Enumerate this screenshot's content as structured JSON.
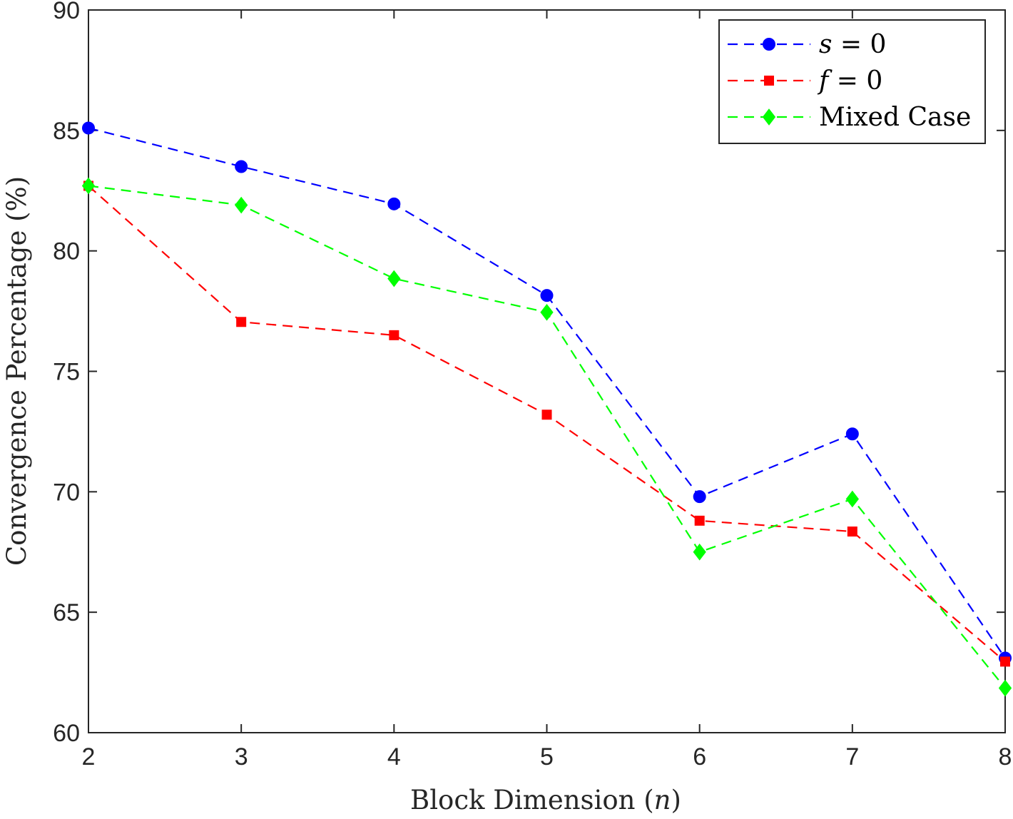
{
  "chart_data": {
    "type": "line",
    "title": "",
    "xlabel": "Block Dimension (n)",
    "xlabel_parts": {
      "prefix": "Block Dimension (",
      "var": "n",
      "suffix": ")"
    },
    "ylabel": "Convergence Percentage (%)",
    "x": [
      2,
      3,
      4,
      5,
      6,
      7,
      8
    ],
    "xlim": [
      2,
      8
    ],
    "ylim": [
      60,
      90
    ],
    "xticks": [
      "2",
      "3",
      "4",
      "5",
      "6",
      "7",
      "8"
    ],
    "yticks": [
      "60",
      "65",
      "70",
      "75",
      "80",
      "85",
      "90"
    ],
    "grid": false,
    "legend_position": "top-right",
    "series": [
      {
        "name": "s = 0",
        "legend_var": "s",
        "legend_rest": " = 0",
        "color": "#0000ff",
        "marker": "circle",
        "line": "dashed",
        "values": [
          85.1,
          83.5,
          81.95,
          78.15,
          69.8,
          72.4,
          63.1
        ]
      },
      {
        "name": "f = 0",
        "legend_var": "f",
        "legend_rest": " = 0",
        "color": "#ff0000",
        "marker": "square",
        "line": "dashed",
        "values": [
          82.7,
          77.05,
          76.5,
          73.2,
          68.8,
          68.35,
          62.95
        ]
      },
      {
        "name": "Mixed Case",
        "legend_var": "",
        "legend_rest": "Mixed Case",
        "color": "#00ff00",
        "marker": "diamond",
        "line": "dashed",
        "values": [
          82.7,
          81.9,
          78.85,
          77.45,
          67.5,
          69.7,
          61.85
        ]
      }
    ]
  }
}
